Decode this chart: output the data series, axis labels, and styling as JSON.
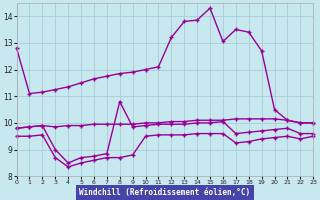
{
  "background_color": "#c8e8f0",
  "grid_color": "#a8ccd8",
  "line_color": "#990099",
  "xlabel": "Windchill (Refroidissement éolien,°C)",
  "xlabel_bg": "#4444aa",
  "xlabel_fg": "#ffffff",
  "xlim": [
    0,
    23
  ],
  "ylim": [
    8,
    14.5
  ],
  "yticks": [
    8,
    9,
    10,
    11,
    12,
    13,
    14
  ],
  "xticks": [
    0,
    1,
    2,
    3,
    4,
    5,
    6,
    7,
    8,
    9,
    10,
    11,
    12,
    13,
    14,
    15,
    16,
    17,
    18,
    19,
    20,
    21,
    22,
    23
  ],
  "hours": [
    0,
    1,
    2,
    3,
    4,
    5,
    6,
    7,
    8,
    9,
    10,
    11,
    12,
    13,
    14,
    15,
    16,
    17,
    18,
    19,
    20,
    21,
    22,
    23
  ],
  "line1": [
    12.8,
    11.1,
    11.15,
    11.25,
    11.35,
    11.5,
    11.65,
    11.75,
    11.85,
    11.9,
    12.0,
    12.1,
    13.2,
    13.8,
    13.85,
    14.3,
    13.05,
    13.5,
    13.4,
    12.7,
    10.5,
    10.1,
    10.0,
    10.0
  ],
  "line2": [
    9.8,
    9.85,
    9.9,
    9.85,
    9.9,
    9.9,
    9.95,
    9.95,
    9.95,
    9.95,
    10.0,
    10.0,
    10.05,
    10.05,
    10.1,
    10.1,
    10.1,
    10.15,
    10.15,
    10.15,
    10.15,
    10.1,
    10.0,
    10.0
  ],
  "line3_x": [
    0,
    1,
    2,
    3,
    4,
    5,
    6,
    7,
    8,
    9,
    10,
    11,
    12,
    13,
    14,
    15,
    16,
    17,
    18,
    19,
    20,
    21,
    22,
    23
  ],
  "line3": [
    9.8,
    9.85,
    9.9,
    9.0,
    8.5,
    8.7,
    8.75,
    8.85,
    10.8,
    9.85,
    9.9,
    9.95,
    9.95,
    9.95,
    10.0,
    10.0,
    10.05,
    9.6,
    9.65,
    9.7,
    9.75,
    9.8,
    9.6,
    9.6
  ],
  "line4": [
    9.5,
    9.5,
    9.55,
    8.7,
    8.35,
    8.5,
    8.6,
    8.7,
    8.7,
    8.8,
    9.5,
    9.55,
    9.55,
    9.55,
    9.6,
    9.6,
    9.6,
    9.25,
    9.3,
    9.4,
    9.45,
    9.5,
    9.4,
    9.5
  ]
}
